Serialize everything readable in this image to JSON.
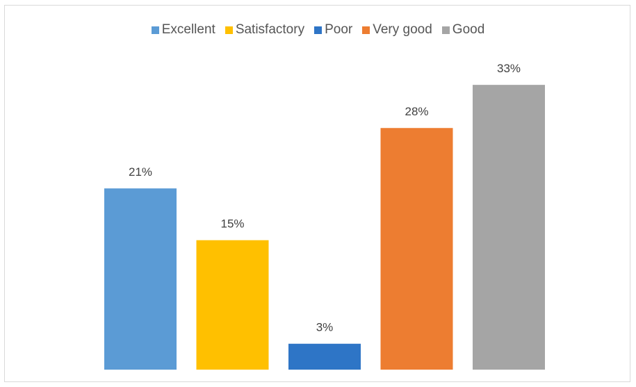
{
  "chart_data": {
    "type": "bar",
    "title": "",
    "xlabel": "",
    "ylabel": "",
    "categories": [
      "Excellent",
      "Satisfactory",
      "Poor",
      "Very good",
      "Good"
    ],
    "values": [
      21,
      15,
      3,
      28,
      33
    ],
    "data_labels": [
      "21%",
      "15%",
      "3%",
      "28%",
      "33%"
    ],
    "ylim": [
      0,
      35
    ],
    "grid": false,
    "legend_placement": "top",
    "colors": [
      "#5b9bd5",
      "#ffc000",
      "#2e75c6",
      "#ed7d31",
      "#a5a5a5"
    ]
  }
}
